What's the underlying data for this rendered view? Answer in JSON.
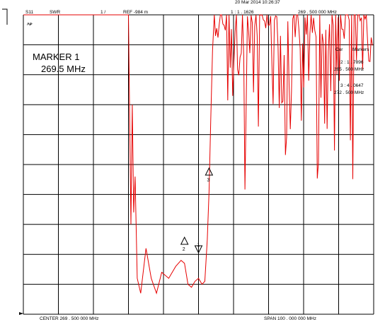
{
  "header": {
    "param": "S11",
    "format": "SWR",
    "scale": "1 /",
    "ref": "REF -984 m",
    "date": "20 Mar 2014  10:26:37",
    "marker_readout": "1 :  1 . 1626",
    "marker_freq": "269  . 500   000   MHz"
  },
  "marker_box": {
    "line1": "MARKER 1",
    "line2": "269.5 MHz"
  },
  "markers_panel": {
    "title_left": "Cor",
    "title_right": "Markers",
    "m2_value": "2 :  1 . 7896",
    "m2_freq": "265  . 500    MHz",
    "m3_value": "3 :  4 . 0647",
    "m3_freq": "272  . 500    MHz"
  },
  "footer": {
    "center": "CENTER     269  . 500   000    MHz",
    "span": "SPAN     100  . 000   000    MHz"
  },
  "plot_labels": {
    "ref_symbol": "▸",
    "corner": "˄ᴘ"
  },
  "marker_labels": [
    "2",
    "1",
    "3"
  ],
  "colors": {
    "trace": "#e60000",
    "grid": "#000000",
    "bg": "#ffffff"
  },
  "chart_data": {
    "type": "line",
    "title": "",
    "xlabel": "",
    "ylabel": "",
    "x_center_mhz": 269.5,
    "x_span_mhz": 100,
    "xlim": [
      219.5,
      319.5
    ],
    "y_reference_note": "SWR 1 / div",
    "grid_divisions": {
      "x": 10,
      "y": 10
    },
    "series": [
      {
        "x": [
          219.5,
          247.0,
          249.5,
          250.2,
          250.6,
          251.0,
          251.4,
          252.0,
          253.0,
          254.5,
          256.0,
          257.5,
          259.0,
          261.0,
          263.0,
          264.5,
          265.5,
          266.5,
          267.5,
          268.5,
          269.5,
          270.5,
          271.3,
          272.0,
          272.5,
          273.0,
          273.5,
          274.0
        ],
        "y": [
          10.0,
          10.0,
          10.0,
          3.0,
          7.0,
          3.4,
          4.6,
          1.2,
          0.7,
          2.2,
          1.2,
          0.7,
          1.4,
          1.2,
          1.6,
          1.8,
          1.7,
          1.0,
          0.9,
          1.1,
          1.2,
          1.0,
          1.1,
          2.5,
          4.1,
          6.5,
          8.8,
          10.0
        ],
        "noisy_region_mhz": [
          274.0,
          319.5
        ]
      }
    ],
    "markers": [
      {
        "id": 1,
        "x_mhz": 269.5,
        "value": 1.1626
      },
      {
        "id": 2,
        "x_mhz": 265.5,
        "value": 1.7896
      },
      {
        "id": 3,
        "x_mhz": 272.5,
        "value": 4.0647
      }
    ]
  }
}
